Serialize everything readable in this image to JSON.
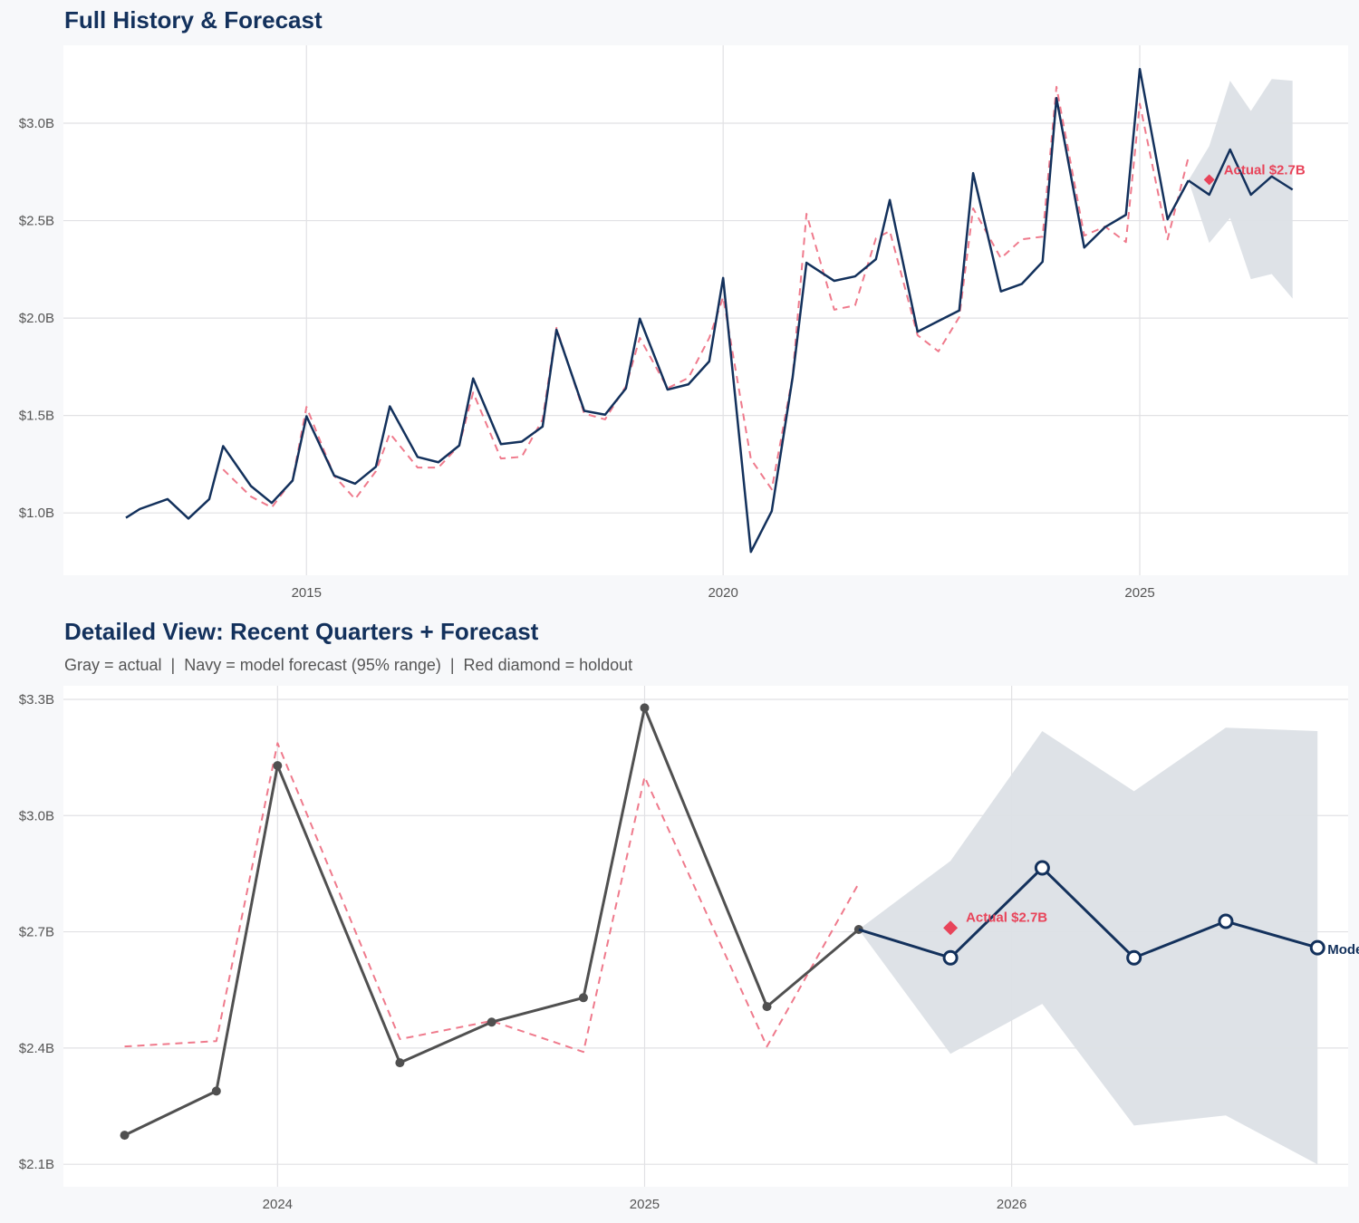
{
  "colors": {
    "background": "#f7f8fa",
    "panel": "#ffffff",
    "navy": "#13315c",
    "fitted_red": "#ef7a8c",
    "holdout_red": "#e8445a",
    "actual_gray": "#505050",
    "band": "#dce0e6"
  },
  "chart_data": [
    {
      "type": "line",
      "title": "Full History & Forecast",
      "xlim": [
        "2012-02",
        "2027-07"
      ],
      "ylim": [
        0.68,
        3.4
      ],
      "x_ticks": [
        {
          "value": 2015,
          "label": "2015"
        },
        {
          "value": 2020,
          "label": "2020"
        },
        {
          "value": 2025,
          "label": "2025"
        }
      ],
      "y_ticks": [
        {
          "value": 1.0,
          "label": "$1.0B"
        },
        {
          "value": 1.5,
          "label": "$1.5B"
        },
        {
          "value": 2.0,
          "label": "$2.0B"
        },
        {
          "value": 2.5,
          "label": "$2.5B"
        },
        {
          "value": 3.0,
          "label": "$3.0B"
        }
      ],
      "grid": true,
      "unit": "$B",
      "series": [
        {
          "role": "actual",
          "color": "#13315c",
          "style": "solid",
          "x": [
            "2012-11",
            "2013-01",
            "2013-05",
            "2013-08",
            "2013-11",
            "2014-01",
            "2014-05",
            "2014-08",
            "2014-11",
            "2015-01",
            "2015-05",
            "2015-08",
            "2015-11",
            "2016-01",
            "2016-05",
            "2016-08",
            "2016-11",
            "2017-01",
            "2017-05",
            "2017-08",
            "2017-11",
            "2018-01",
            "2018-05",
            "2018-08",
            "2018-11",
            "2019-01",
            "2019-05",
            "2019-08",
            "2019-11",
            "2020-01",
            "2020-05",
            "2020-08",
            "2020-11",
            "2021-01",
            "2021-05",
            "2021-08",
            "2021-11",
            "2022-01",
            "2022-05",
            "2022-08",
            "2022-11",
            "2023-01",
            "2023-05",
            "2023-08",
            "2023-11",
            "2024-01",
            "2024-05",
            "2024-08",
            "2024-11",
            "2025-01",
            "2025-05",
            "2025-08"
          ],
          "values": [
            0.975,
            1.02,
            1.071,
            0.971,
            1.071,
            1.343,
            1.138,
            1.051,
            1.166,
            1.496,
            1.191,
            1.15,
            1.237,
            1.547,
            1.287,
            1.26,
            1.346,
            1.69,
            1.353,
            1.366,
            1.443,
            1.94,
            1.524,
            1.504,
            1.639,
            1.997,
            1.633,
            1.66,
            1.778,
            2.206,
            0.8,
            1.009,
            1.694,
            2.284,
            2.191,
            2.214,
            2.302,
            2.606,
            1.93,
            1.985,
            2.039,
            2.744,
            2.137,
            2.175,
            2.289,
            3.129,
            2.362,
            2.467,
            2.53,
            3.278,
            2.507,
            2.706
          ]
        },
        {
          "role": "fitted",
          "color": "#ef7a8c",
          "style": "dashed",
          "x": [
            "2014-01",
            "2014-05",
            "2014-08",
            "2014-11",
            "2015-01",
            "2015-05",
            "2015-08",
            "2015-11",
            "2016-01",
            "2016-05",
            "2016-08",
            "2016-11",
            "2017-01",
            "2017-05",
            "2017-08",
            "2017-11",
            "2018-01",
            "2018-05",
            "2018-08",
            "2018-11",
            "2019-01",
            "2019-05",
            "2019-08",
            "2019-11",
            "2020-01",
            "2020-05",
            "2020-08",
            "2020-11",
            "2021-01",
            "2021-05",
            "2021-08",
            "2021-11",
            "2022-01",
            "2022-05",
            "2022-08",
            "2022-11",
            "2023-01",
            "2023-05",
            "2023-08",
            "2023-11",
            "2024-01",
            "2024-05",
            "2024-08",
            "2024-11",
            "2025-01",
            "2025-05",
            "2025-08"
          ],
          "values": [
            1.223,
            1.084,
            1.028,
            1.17,
            1.544,
            1.19,
            1.071,
            1.214,
            1.408,
            1.233,
            1.233,
            1.346,
            1.618,
            1.279,
            1.288,
            1.48,
            1.95,
            1.51,
            1.48,
            1.65,
            1.898,
            1.64,
            1.693,
            1.898,
            2.107,
            1.276,
            1.121,
            1.7,
            2.535,
            2.043,
            2.065,
            2.409,
            2.447,
            1.912,
            1.829,
            2.005,
            2.563,
            2.307,
            2.404,
            2.418,
            3.187,
            2.423,
            2.47,
            2.39,
            3.1,
            2.404,
            2.825
          ]
        },
        {
          "role": "forecast",
          "color": "#13315c",
          "style": "solid",
          "x": [
            "2025-08",
            "2025-11",
            "2026-02",
            "2026-05",
            "2026-08",
            "2026-11"
          ],
          "values": [
            2.706,
            2.633,
            2.865,
            2.633,
            2.727,
            2.659
          ],
          "lower": [
            2.706,
            2.385,
            2.514,
            2.2,
            2.226,
            2.1
          ],
          "upper": [
            2.706,
            2.883,
            3.218,
            3.063,
            3.227,
            3.218
          ]
        }
      ],
      "holdout": {
        "x": "2025-11",
        "value": 2.71,
        "label": "Actual $2.7B"
      }
    },
    {
      "type": "line",
      "title": "Detailed View: Recent Quarters + Forecast",
      "subtitle": "Gray = actual  |  Navy = model forecast (95% range)  |  Red diamond = holdout",
      "xlim": [
        "2023-06",
        "2026-12"
      ],
      "ylim": [
        2.042,
        3.335
      ],
      "x_ticks": [
        {
          "value": 2024,
          "label": "2024"
        },
        {
          "value": 2025,
          "label": "2025"
        },
        {
          "value": 2026,
          "label": "2026"
        }
      ],
      "y_ticks": [
        {
          "value": 2.1,
          "label": "$2.1B"
        },
        {
          "value": 2.4,
          "label": "$2.4B"
        },
        {
          "value": 2.7,
          "label": "$2.7B"
        },
        {
          "value": 3.0,
          "label": "$3.0B"
        },
        {
          "value": 3.3,
          "label": "$3.3B"
        }
      ],
      "grid": true,
      "unit": "$B",
      "series": [
        {
          "role": "fitted",
          "color": "#ef7a8c",
          "style": "dashed",
          "x": [
            "2023-08",
            "2023-11",
            "2024-01",
            "2024-05",
            "2024-08",
            "2024-11",
            "2025-01",
            "2025-05",
            "2025-08"
          ],
          "values": [
            2.404,
            2.418,
            3.187,
            2.423,
            2.47,
            2.39,
            3.1,
            2.404,
            2.825
          ]
        },
        {
          "role": "actual",
          "color": "#505050",
          "style": "solid",
          "markers": "filled-circle",
          "x": [
            "2023-08",
            "2023-11",
            "2024-01",
            "2024-05",
            "2024-08",
            "2024-11",
            "2025-01",
            "2025-05",
            "2025-08"
          ],
          "values": [
            2.175,
            2.289,
            3.129,
            2.362,
            2.467,
            2.53,
            3.278,
            2.507,
            2.706
          ]
        },
        {
          "role": "forecast",
          "name": "Model",
          "color": "#13315c",
          "style": "solid",
          "markers": "open-circle",
          "x": [
            "2025-08",
            "2025-11",
            "2026-02",
            "2026-05",
            "2026-08",
            "2026-11"
          ],
          "values": [
            2.706,
            2.633,
            2.865,
            2.633,
            2.727,
            2.659
          ],
          "lower": [
            2.706,
            2.385,
            2.514,
            2.2,
            2.226,
            2.1
          ],
          "upper": [
            2.706,
            2.883,
            3.218,
            3.063,
            3.227,
            3.218
          ]
        }
      ],
      "holdout": {
        "x": "2025-11",
        "value": 2.71,
        "label": "Actual $2.7B"
      },
      "end_label": "Model"
    }
  ]
}
